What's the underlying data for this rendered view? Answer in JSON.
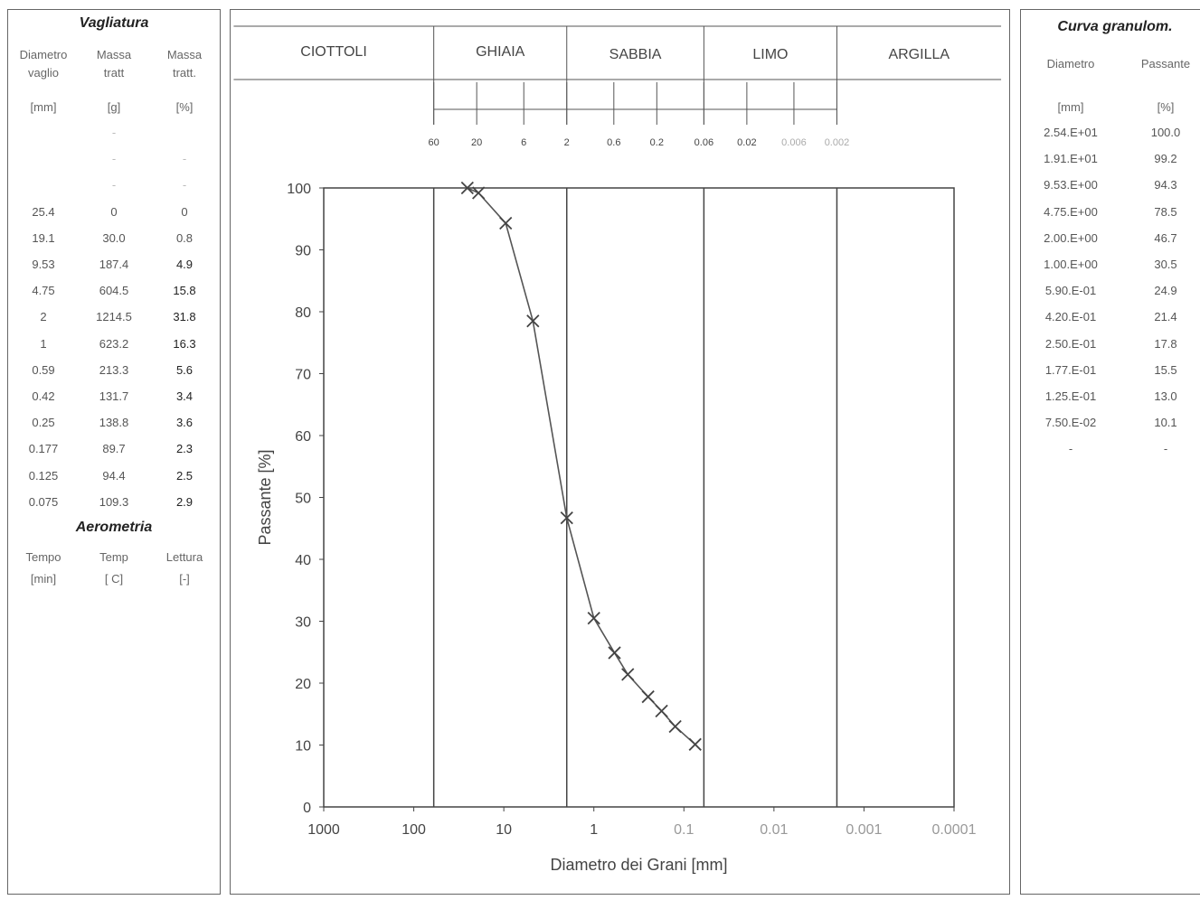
{
  "left_table": {
    "title": "Vagliatura",
    "headers": [
      [
        "Diametro",
        "vaglio",
        "[mm]"
      ],
      [
        "Massa",
        "tratt",
        "[g]"
      ],
      [
        "Massa",
        "tratt.",
        "[%]"
      ]
    ],
    "rows": [
      [
        "",
        "-",
        ""
      ],
      [
        "",
        "-",
        "-"
      ],
      [
        "",
        "-",
        "-"
      ],
      [
        "25.4",
        "0",
        "0"
      ],
      [
        "19.1",
        "30.0",
        "0.8"
      ],
      [
        "9.53",
        "187.4",
        "4.9"
      ],
      [
        "4.75",
        "604.5",
        "15.8"
      ],
      [
        "2",
        "1214.5",
        "31.8"
      ],
      [
        "1",
        "623.2",
        "16.3"
      ],
      [
        "0.59",
        "213.3",
        "5.6"
      ],
      [
        "0.42",
        "131.7",
        "3.4"
      ],
      [
        "0.25",
        "138.8",
        "3.6"
      ],
      [
        "0.177",
        "89.7",
        "2.3"
      ],
      [
        "0.125",
        "94.4",
        "2.5"
      ],
      [
        "0.075",
        "109.3",
        "2.9"
      ]
    ],
    "aero_title": "Aerometria",
    "aero_headers": [
      [
        "Tempo",
        "[min]"
      ],
      [
        "Temp",
        "[ C]"
      ],
      [
        "Lettura",
        "[-]"
      ]
    ]
  },
  "right_table": {
    "title": "Curva granulom.",
    "headers": [
      [
        "Diametro",
        "[mm]"
      ],
      [
        "Passante",
        "[%]"
      ]
    ],
    "rows": [
      [
        "2.54.E+01",
        "100.0"
      ],
      [
        "1.91.E+01",
        "99.2"
      ],
      [
        "9.53.E+00",
        "94.3"
      ],
      [
        "4.75.E+00",
        "78.5"
      ],
      [
        "2.00.E+00",
        "46.7"
      ],
      [
        "1.00.E+00",
        "30.5"
      ],
      [
        "5.90.E-01",
        "24.9"
      ],
      [
        "4.20.E-01",
        "21.4"
      ],
      [
        "2.50.E-01",
        "17.8"
      ],
      [
        "1.77.E-01",
        "15.5"
      ],
      [
        "1.25.E-01",
        "13.0"
      ],
      [
        "7.50.E-02",
        "10.1"
      ],
      [
        "-",
        "-"
      ]
    ]
  },
  "chart_data": {
    "type": "line",
    "marker": "x",
    "xlabel": "Diametro dei Grani [mm]",
    "ylabel": "Passante [%]",
    "x_scale": "log",
    "x_reversed": true,
    "xlim": [
      1000,
      0.0001
    ],
    "ylim": [
      0,
      100
    ],
    "x_tick_labels": [
      "1000",
      "100",
      "10",
      "1",
      "0.1",
      "0.01",
      "0.001",
      "0.0001"
    ],
    "y_tick_labels": [
      "0",
      "10",
      "20",
      "30",
      "40",
      "50",
      "60",
      "70",
      "80",
      "90",
      "100"
    ],
    "vertical_lines_x": [
      60,
      2,
      0.06,
      0.002
    ],
    "series": [
      {
        "x": [
          25.4,
          19.1,
          9.53,
          4.75,
          2.0,
          1.0,
          0.59,
          0.42,
          0.25,
          0.177,
          0.125,
          0.075
        ],
        "y": [
          100.0,
          99.2,
          94.3,
          78.5,
          46.7,
          30.5,
          24.9,
          21.4,
          17.8,
          15.5,
          13.0,
          10.1
        ]
      }
    ],
    "classification": {
      "classes": [
        "CIOTTOLI",
        "GHIAIA",
        "SABBIA",
        "LIMO",
        "ARGILLA"
      ],
      "boundary_values": [
        60,
        2,
        0.06,
        0.002
      ],
      "tick_values": [
        60,
        20,
        6,
        2,
        0.6,
        0.2,
        0.06,
        0.02,
        0.006,
        0.002
      ],
      "tick_labels": [
        "60",
        "20",
        "6",
        "2",
        "0.6",
        "0.2",
        "0.06",
        "0.02",
        "0.006",
        "0.002"
      ]
    }
  }
}
